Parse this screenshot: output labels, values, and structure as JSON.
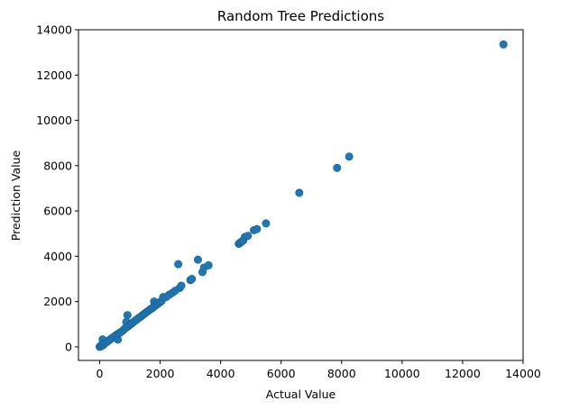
{
  "chart_data": {
    "type": "scatter",
    "title": "Random Tree Predictions",
    "xlabel": "Actual Value",
    "ylabel": "Prediction Value",
    "xlim": [
      -700,
      14000
    ],
    "ylim": [
      -600,
      14000
    ],
    "xticks": [
      0,
      2000,
      4000,
      6000,
      8000,
      10000,
      12000,
      14000
    ],
    "yticks": [
      0,
      2000,
      4000,
      6000,
      8000,
      10000,
      12000,
      14000
    ],
    "grid": false,
    "marker_color": "#1f77b4",
    "series": [
      {
        "points": [
          [
            0,
            0
          ],
          [
            30,
            40
          ],
          [
            50,
            20
          ],
          [
            80,
            100
          ],
          [
            100,
            330
          ],
          [
            120,
            80
          ],
          [
            150,
            150
          ],
          [
            200,
            180
          ],
          [
            250,
            230
          ],
          [
            300,
            280
          ],
          [
            350,
            330
          ],
          [
            400,
            380
          ],
          [
            450,
            420
          ],
          [
            500,
            470
          ],
          [
            550,
            520
          ],
          [
            600,
            320
          ],
          [
            620,
            580
          ],
          [
            650,
            610
          ],
          [
            700,
            650
          ],
          [
            750,
            700
          ],
          [
            800,
            760
          ],
          [
            850,
            820
          ],
          [
            880,
            1100
          ],
          [
            900,
            870
          ],
          [
            920,
            1400
          ],
          [
            950,
            920
          ],
          [
            1000,
            980
          ],
          [
            1050,
            1020
          ],
          [
            1100,
            1080
          ],
          [
            1150,
            1130
          ],
          [
            1200,
            1180
          ],
          [
            1250,
            1230
          ],
          [
            1300,
            1280
          ],
          [
            1350,
            1320
          ],
          [
            1400,
            1380
          ],
          [
            1450,
            1430
          ],
          [
            1500,
            1480
          ],
          [
            1550,
            1530
          ],
          [
            1600,
            1580
          ],
          [
            1650,
            1630
          ],
          [
            1700,
            1680
          ],
          [
            1750,
            1720
          ],
          [
            1800,
            1780
          ],
          [
            1800,
            2000
          ],
          [
            1850,
            1830
          ],
          [
            1900,
            1880
          ],
          [
            1950,
            1930
          ],
          [
            2000,
            1980
          ],
          [
            2050,
            2030
          ],
          [
            2100,
            2200
          ],
          [
            2200,
            2200
          ],
          [
            2300,
            2300
          ],
          [
            2400,
            2380
          ],
          [
            2500,
            2480
          ],
          [
            2600,
            3650
          ],
          [
            2650,
            2600
          ],
          [
            2700,
            2700
          ],
          [
            3000,
            2950
          ],
          [
            3050,
            3000
          ],
          [
            3250,
            3850
          ],
          [
            3400,
            3300
          ],
          [
            3450,
            3500
          ],
          [
            3600,
            3600
          ],
          [
            4600,
            4550
          ],
          [
            4650,
            4600
          ],
          [
            4700,
            4650
          ],
          [
            4750,
            4700
          ],
          [
            4800,
            4850
          ],
          [
            4900,
            4900
          ],
          [
            5100,
            5150
          ],
          [
            5200,
            5200
          ],
          [
            5500,
            5450
          ],
          [
            6600,
            6800
          ],
          [
            7850,
            7900
          ],
          [
            8250,
            8400
          ],
          [
            13350,
            13350
          ]
        ]
      }
    ]
  }
}
